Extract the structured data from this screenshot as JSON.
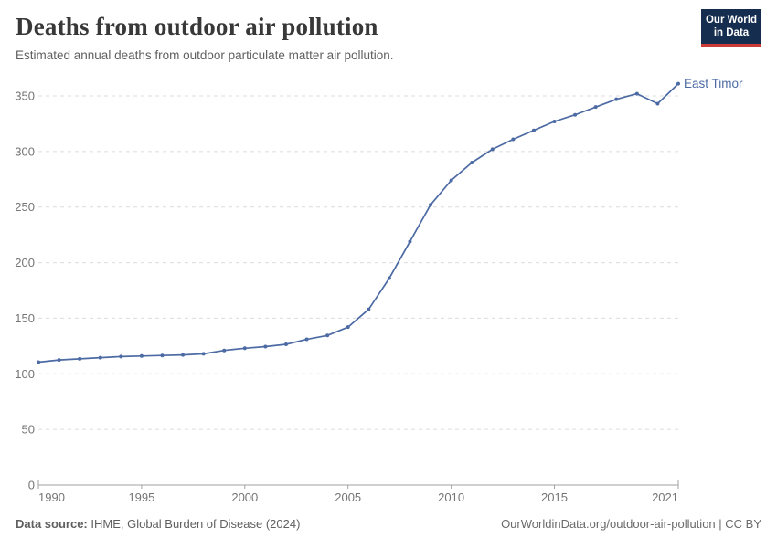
{
  "header": {
    "title": "Deaths from outdoor air pollution",
    "subtitle": "Estimated annual deaths from outdoor particulate matter air pollution.",
    "logo": {
      "line1": "Our World",
      "line2": "in Data",
      "bg_color": "#152d4e",
      "accent_color": "#cc3a36"
    }
  },
  "chart_data": {
    "type": "line",
    "title": "Deaths from outdoor air pollution",
    "xlabel": "",
    "ylabel": "",
    "grid": "horizontal-dashed",
    "legend_position": "end-of-line-label",
    "xlim": [
      1990,
      2021
    ],
    "ylim": [
      0,
      370
    ],
    "x_ticks": [
      1990,
      1995,
      2000,
      2005,
      2010,
      2015,
      2021
    ],
    "y_ticks": [
      0,
      50,
      100,
      150,
      200,
      250,
      300,
      350
    ],
    "x": [
      1990,
      1991,
      1992,
      1993,
      1994,
      1995,
      1996,
      1997,
      1998,
      1999,
      2000,
      2001,
      2002,
      2003,
      2004,
      2005,
      2006,
      2007,
      2008,
      2009,
      2010,
      2011,
      2012,
      2013,
      2014,
      2015,
      2016,
      2017,
      2018,
      2019,
      2020,
      2021
    ],
    "series": [
      {
        "name": "East Timor",
        "color": "#4c6aa3",
        "values": [
          110.5,
          112.5,
          113.5,
          114.5,
          115.5,
          116,
          116.5,
          117,
          118,
          121,
          123,
          124.5,
          126.5,
          131,
          134.5,
          142,
          158,
          186,
          219,
          252,
          274,
          290,
          302,
          311,
          319,
          327,
          333,
          340,
          347,
          352,
          343,
          361
        ]
      }
    ],
    "colors": {
      "grid": "#dcdcdc",
      "axis_line": "#a1a1a1",
      "tick_text": "#757575"
    }
  },
  "footer": {
    "source_label": "Data source:",
    "source_text": " IHME, Global Burden of Disease (2024)",
    "credit": "OurWorldinData.org/outdoor-air-pollution | CC BY"
  }
}
